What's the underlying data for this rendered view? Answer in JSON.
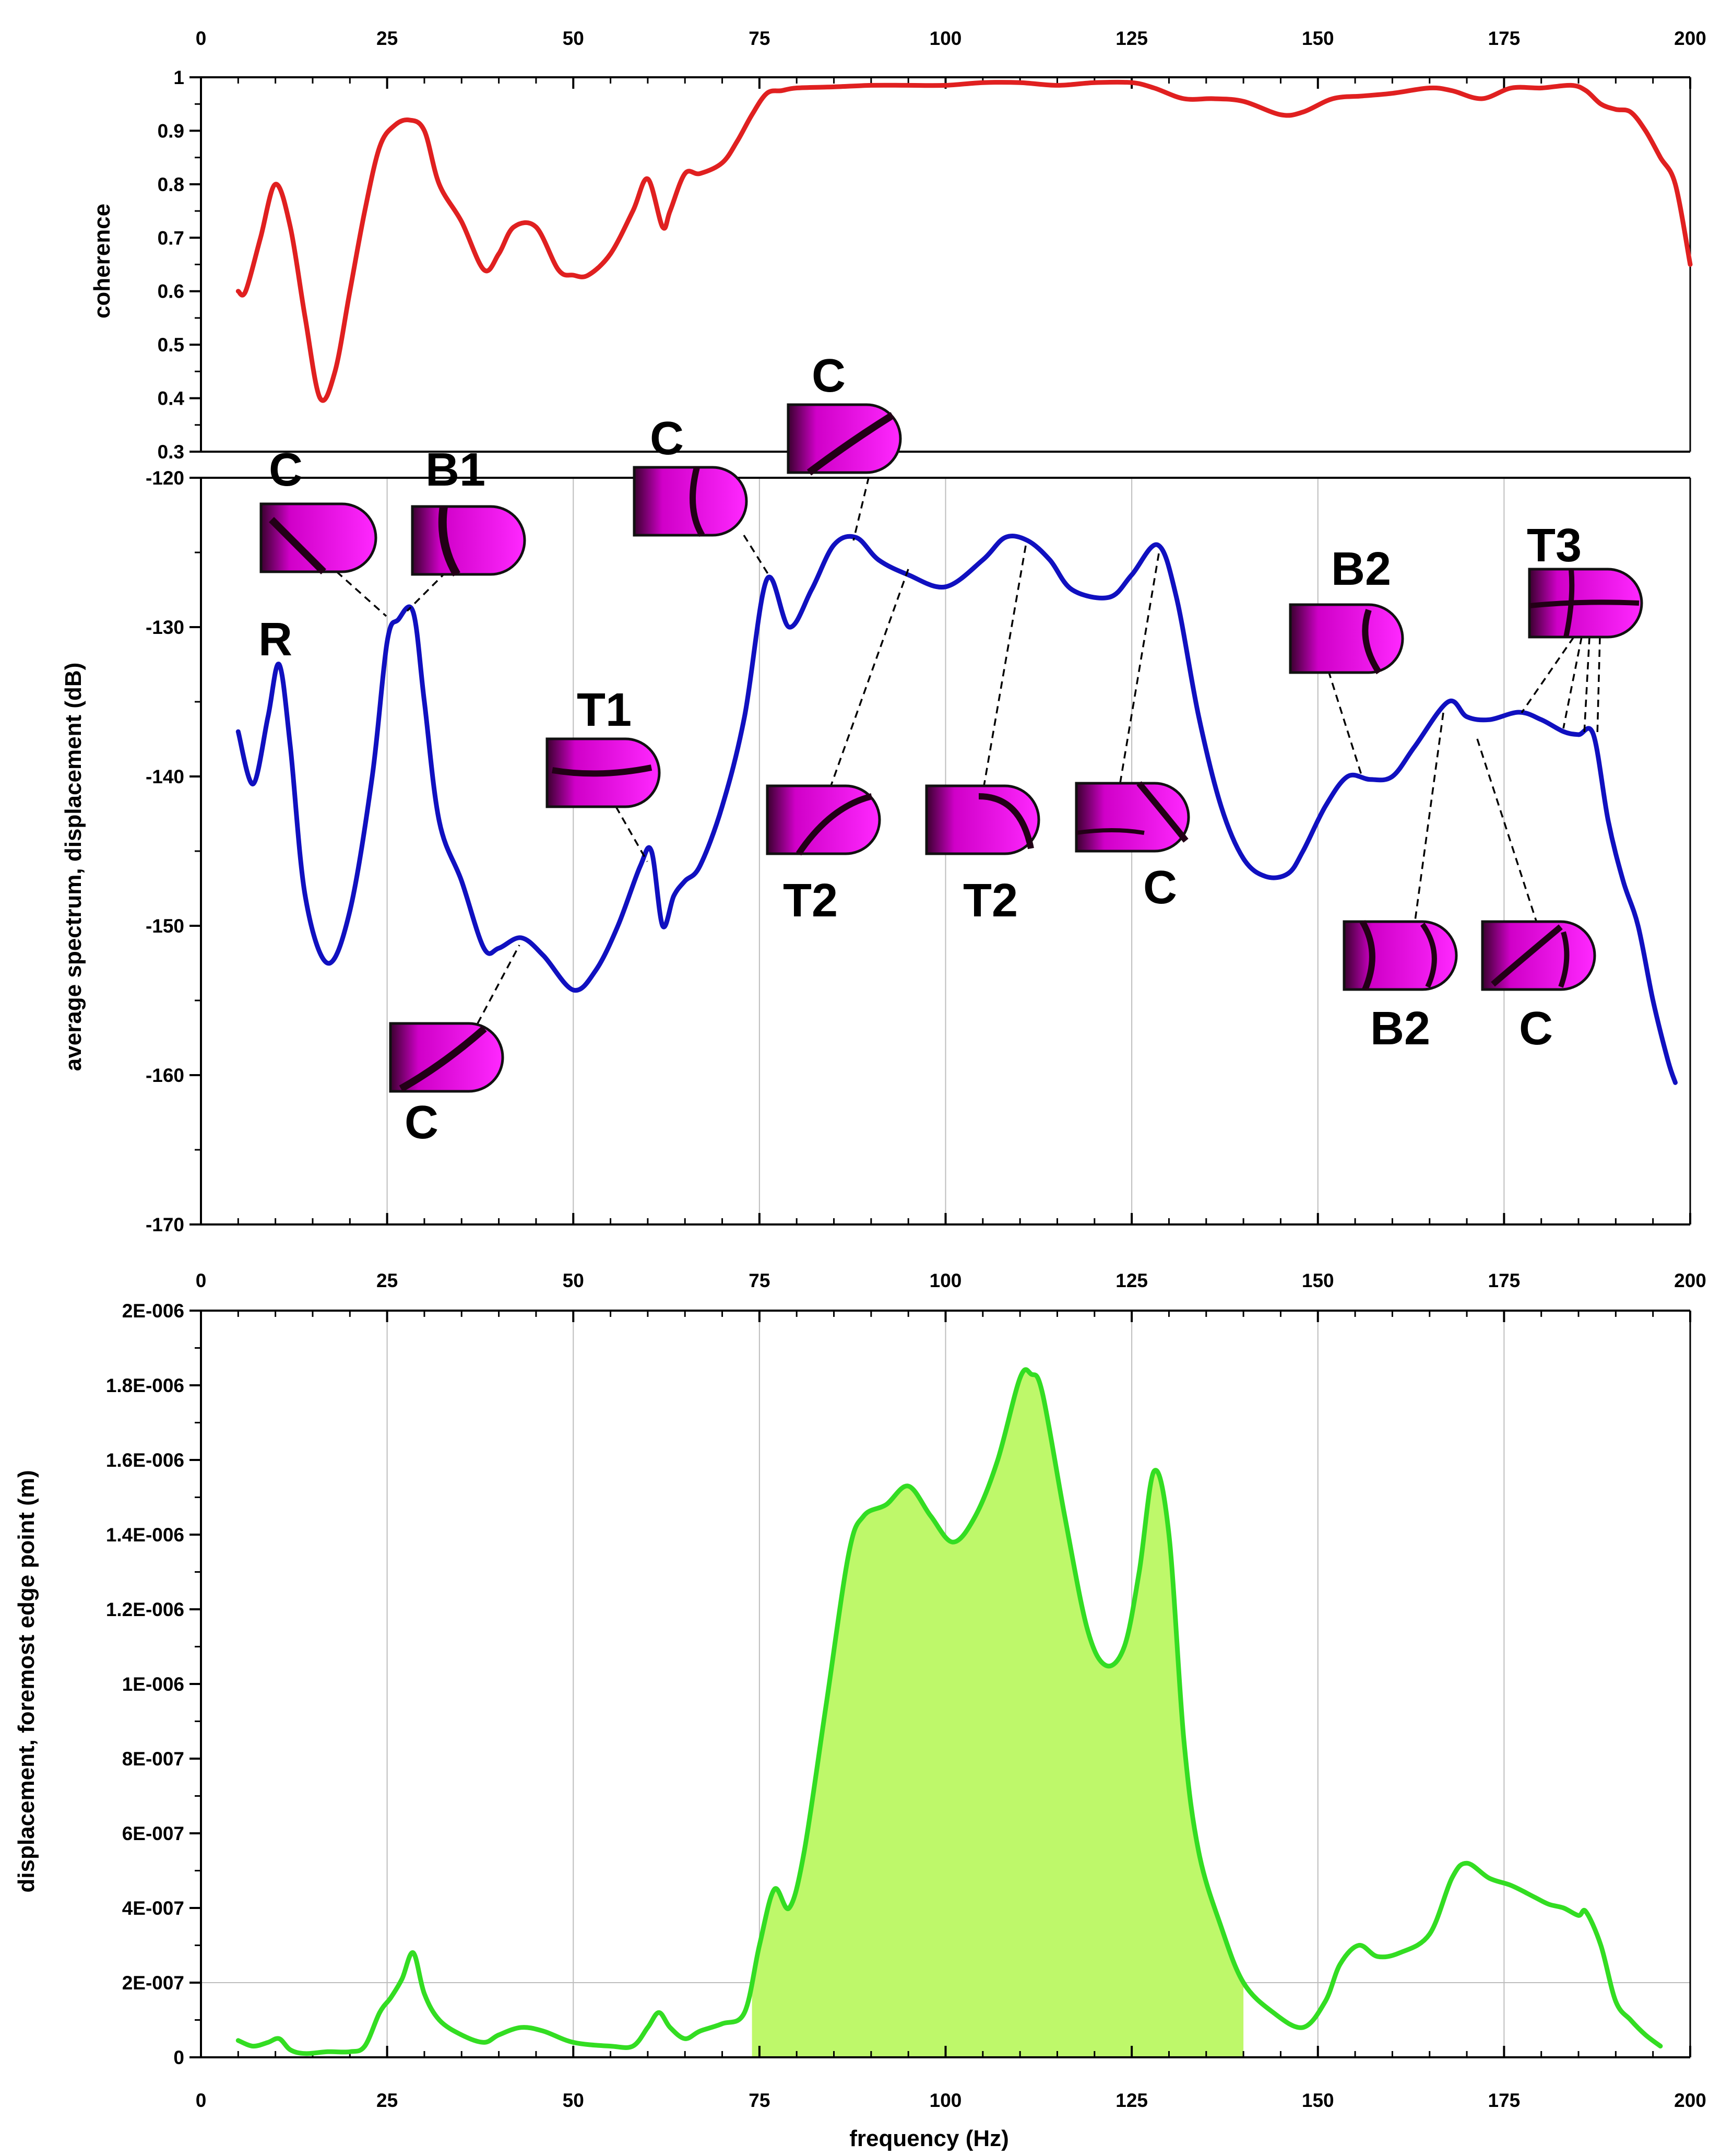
{
  "chart_data": [
    {
      "id": "coherence",
      "type": "line",
      "ylabel": "coherence",
      "xlim": [
        0,
        200
      ],
      "ylim": [
        0.3,
        1
      ],
      "xticks": [
        0,
        25,
        50,
        75,
        100,
        125,
        150,
        175,
        200
      ],
      "xtick_labels": [
        "0",
        "25",
        "50",
        "75",
        "100",
        "125",
        "150",
        "175",
        "200"
      ],
      "yticks": [
        0.3,
        0.4,
        0.5,
        0.6,
        0.7,
        0.8,
        0.9,
        1
      ],
      "ytick_labels": [
        "0.3",
        "0.4",
        "0.5",
        "0.6",
        "0.7",
        "0.8",
        "0.9",
        "1"
      ],
      "color": "#e02020",
      "series": [
        {
          "name": "coherence",
          "x": [
            5,
            6,
            8,
            10,
            12,
            14,
            16,
            18,
            20,
            22,
            24,
            26,
            28,
            30,
            32,
            35,
            38,
            40,
            42,
            45,
            48,
            50,
            52,
            55,
            58,
            60,
            62,
            63,
            65,
            67,
            70,
            72,
            74,
            76,
            78,
            80,
            85,
            90,
            95,
            100,
            105,
            110,
            115,
            120,
            125,
            128,
            132,
            136,
            140,
            145,
            148,
            152,
            156,
            160,
            165,
            168,
            172,
            176,
            180,
            184,
            186,
            188,
            190,
            192,
            194,
            196,
            198,
            200
          ],
          "y": [
            0.6,
            0.6,
            0.7,
            0.8,
            0.72,
            0.55,
            0.4,
            0.45,
            0.6,
            0.75,
            0.87,
            0.91,
            0.92,
            0.9,
            0.8,
            0.73,
            0.64,
            0.67,
            0.72,
            0.72,
            0.64,
            0.63,
            0.63,
            0.67,
            0.75,
            0.81,
            0.72,
            0.75,
            0.82,
            0.82,
            0.84,
            0.88,
            0.93,
            0.97,
            0.975,
            0.98,
            0.982,
            0.985,
            0.985,
            0.985,
            0.99,
            0.99,
            0.985,
            0.99,
            0.99,
            0.98,
            0.96,
            0.96,
            0.955,
            0.93,
            0.935,
            0.96,
            0.965,
            0.97,
            0.98,
            0.975,
            0.96,
            0.98,
            0.98,
            0.985,
            0.975,
            0.95,
            0.94,
            0.935,
            0.9,
            0.85,
            0.8,
            0.65
          ]
        }
      ]
    },
    {
      "id": "spectrum",
      "type": "line",
      "ylabel": "average spectrum, displacement (dB)",
      "xlim": [
        0,
        200
      ],
      "ylim": [
        -170,
        -120
      ],
      "yticks": [
        -170,
        -160,
        -150,
        -140,
        -130,
        -120
      ],
      "ytick_labels": [
        "-170",
        "-160",
        "-150",
        "-140",
        "-130",
        "-120"
      ],
      "color": "#1010c0",
      "series": [
        {
          "name": "average spectrum",
          "x": [
            5,
            7,
            9,
            10.5,
            12,
            14,
            17,
            20,
            23,
            25,
            26.5,
            28.5,
            30,
            32,
            35,
            38,
            40,
            43,
            46,
            50,
            53,
            56,
            59,
            60.5,
            62,
            63.5,
            65,
            67,
            70,
            73,
            76,
            79,
            82,
            85,
            88,
            91,
            95,
            100,
            105,
            108,
            111,
            114,
            117,
            122,
            125,
            128.5,
            131,
            134,
            137,
            140,
            143,
            146,
            148,
            151,
            154,
            157,
            160,
            163,
            167.5,
            170,
            173,
            177,
            180,
            183,
            185,
            187,
            189,
            191,
            193,
            195,
            197,
            198
          ],
          "y": [
            -137,
            -140.5,
            -136,
            -132.5,
            -138,
            -148,
            -152.5,
            -149,
            -140,
            -131,
            -129.5,
            -129,
            -135,
            -143,
            -147,
            -151.5,
            -151.5,
            -150.8,
            -152,
            -154.3,
            -153,
            -150,
            -146,
            -145,
            -150,
            -148,
            -147,
            -146,
            -142,
            -136,
            -126.8,
            -130,
            -127.5,
            -124.5,
            -124,
            -125.5,
            -126.5,
            -127.3,
            -125.5,
            -124,
            -124.2,
            -125.5,
            -127.5,
            -128,
            -126.5,
            -124.5,
            -128,
            -136,
            -142,
            -145.5,
            -146.7,
            -146.5,
            -145,
            -142,
            -140,
            -140.2,
            -140,
            -138,
            -135,
            -136,
            -136.2,
            -135.7,
            -136.2,
            -137,
            -137.2,
            -137.2,
            -143,
            -147,
            -150,
            -155,
            -159,
            -160.5
          ]
        }
      ],
      "annotations": [
        {
          "label": "R",
          "mode": null,
          "freq": null
        },
        {
          "label": "C",
          "mode": "C",
          "freq": 27
        },
        {
          "label": "B1",
          "mode": "B1",
          "freq": 28.5
        },
        {
          "label": "C",
          "mode": "C",
          "freq": 43
        },
        {
          "label": "T1",
          "mode": "T1",
          "freq": 60.5
        },
        {
          "label": "C",
          "mode": "C",
          "freq": 76
        },
        {
          "label": "C",
          "mode": "C",
          "freq": 88
        },
        {
          "label": "T2",
          "mode": "T2",
          "freq": 95
        },
        {
          "label": "T2",
          "mode": "T2",
          "freq": 111
        },
        {
          "label": "C",
          "mode": "C",
          "freq": 128.5
        },
        {
          "label": "B2",
          "mode": "B2",
          "freq": 156
        },
        {
          "label": "B2",
          "mode": "B2",
          "freq": 167.5
        },
        {
          "label": "C",
          "mode": "C",
          "freq": 169
        },
        {
          "label": "T3",
          "mode": "T3",
          "freq": 177
        }
      ]
    },
    {
      "id": "displacement",
      "type": "area",
      "xlabel": "frequency (Hz)",
      "ylabel": "displacement, foremost edge point (m)",
      "xlim": [
        0,
        200
      ],
      "ylim": [
        0,
        2e-06
      ],
      "yticks": [
        0,
        2e-07,
        4e-07,
        6e-07,
        8e-07,
        1e-06,
        1.2e-06,
        1.4e-06,
        1.6e-06,
        1.8e-06,
        2e-06
      ],
      "ytick_labels": [
        "0",
        "2E-007",
        "4E-007",
        "6E-007",
        "8E-007",
        "1E-006",
        "1.2E-006",
        "1.4E-006",
        "1.6E-006",
        "1.8E-006",
        "2E-006"
      ],
      "color": "#33dd22",
      "fill_color": "#bef86a",
      "shaded_range": [
        74,
        140
      ],
      "series": [
        {
          "name": "displacement",
          "x": [
            5,
            7,
            9,
            10.5,
            12,
            14,
            17,
            20,
            22,
            24,
            25.5,
            27,
            28.5,
            30,
            32,
            35,
            38,
            40,
            43,
            46,
            50,
            55,
            58,
            60,
            61.5,
            63,
            65,
            67,
            70,
            73,
            75,
            77,
            79,
            81,
            84,
            87,
            89,
            92,
            95,
            98,
            101,
            104,
            107,
            110,
            111.5,
            113,
            116,
            119,
            121.5,
            124,
            126,
            128,
            130,
            132,
            134,
            137,
            140,
            144,
            148,
            151,
            153,
            155.5,
            158,
            161,
            165,
            168,
            170,
            173,
            176,
            179,
            181,
            183,
            185,
            186,
            188,
            190,
            192,
            194,
            196
          ],
          "y": [
            4.5e-08,
            3e-08,
            4e-08,
            5e-08,
            2e-08,
            1e-08,
            1.5e-08,
            1.5e-08,
            3e-08,
            1.2e-07,
            1.6e-07,
            2.1e-07,
            2.8e-07,
            1.7e-07,
            1e-07,
            6e-08,
            4e-08,
            6e-08,
            8e-08,
            7e-08,
            4e-08,
            3e-08,
            3e-08,
            8e-08,
            1.2e-07,
            8e-08,
            5e-08,
            7e-08,
            9e-08,
            1.2e-07,
            3e-07,
            4.5e-07,
            4e-07,
            5.5e-07,
            9.5e-07,
            1.35e-06,
            1.45e-06,
            1.48e-06,
            1.53e-06,
            1.45e-06,
            1.38e-06,
            1.45e-06,
            1.6e-06,
            1.82e-06,
            1.83e-06,
            1.78e-06,
            1.45e-06,
            1.15e-06,
            1.05e-06,
            1.1e-06,
            1.3e-06,
            1.57e-06,
            1.4e-06,
            8.5e-07,
            5.5e-07,
            3.5e-07,
            2e-07,
            1.2e-07,
            8e-08,
            1.5e-07,
            2.5e-07,
            3e-07,
            2.7e-07,
            2.8e-07,
            3.3e-07,
            4.8e-07,
            5.2e-07,
            4.8e-07,
            4.6e-07,
            4.3e-07,
            4.1e-07,
            4e-07,
            3.8e-07,
            3.9e-07,
            3e-07,
            1.5e-07,
            1e-07,
            6e-08,
            3e-08
          ]
        }
      ]
    }
  ]
}
